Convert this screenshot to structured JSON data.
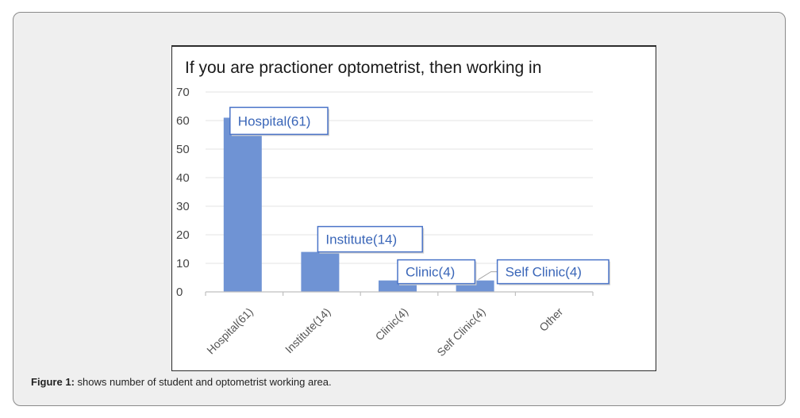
{
  "chart_data": {
    "type": "bar",
    "title": "If you are practioner optometrist, then working in",
    "categories": [
      "Hospital(61)",
      "Institute(14)",
      "Clinic(4)",
      "Self Clinic(4)",
      "Other"
    ],
    "values": [
      61,
      14,
      4,
      4,
      0
    ],
    "data_labels": [
      "Hospital(61)",
      "Institute(14)",
      "Clinic(4)",
      "Self Clinic(4)",
      ""
    ],
    "xlabel": "",
    "ylabel": "",
    "ylim": [
      0,
      70
    ],
    "yticks": [
      0,
      10,
      20,
      30,
      40,
      50,
      60,
      70
    ],
    "grid": true,
    "legend": "none",
    "bar_color": "#6f93d4",
    "label_border_color": "#4a74c8",
    "label_text_color": "#3a66b8"
  },
  "caption": {
    "prefix": "Figure 1:",
    "text": " shows number of student and optometrist working area."
  }
}
